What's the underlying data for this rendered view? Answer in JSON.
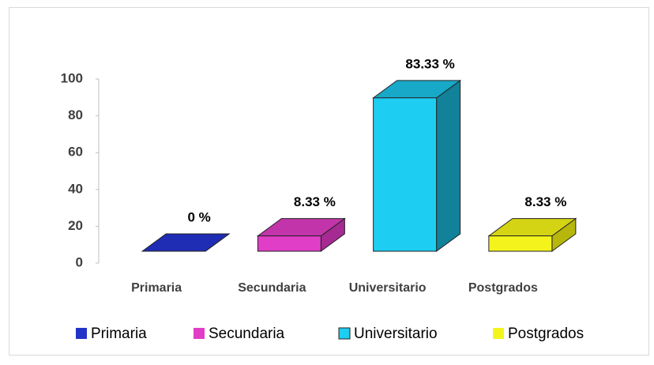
{
  "chart_data": {
    "type": "bar3d",
    "categories": [
      "Primaria",
      "Secundaria",
      "Universitario",
      "Postgrados"
    ],
    "values": [
      0,
      8.33,
      83.33,
      8.33
    ],
    "value_labels": [
      "0 %",
      "8.33 %",
      "83.33 %",
      "8.33 %"
    ],
    "colors": [
      "#2233c8",
      "#e03ec6",
      "#1ecdf2",
      "#f4f41c"
    ],
    "side_colors": [
      "#18249a",
      "#a52a92",
      "#12819a",
      "#b6b60c"
    ],
    "top_colors": [
      "#1e2db4",
      "#c235aa",
      "#18a8c8",
      "#d4d414"
    ],
    "ylim": [
      0,
      100
    ],
    "yticks": [
      0,
      20,
      40,
      60,
      80,
      100
    ],
    "legend": "bottom"
  }
}
